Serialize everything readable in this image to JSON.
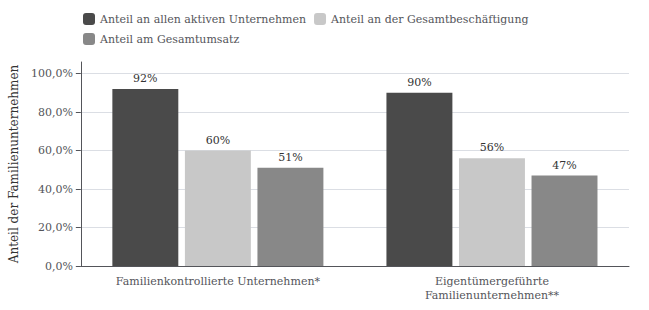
{
  "chart_data": {
    "type": "bar",
    "categories": [
      "Familienkontrollierte Unternehmen*",
      "Eigentümergeführte\nFamilienunternehmen**"
    ],
    "series": [
      {
        "name": "Anteil an allen aktiven Unternehmen",
        "color": "#4a4a4a",
        "values": [
          92,
          90
        ],
        "value_labels": [
          "92%",
          "90%"
        ]
      },
      {
        "name": "Anteil an der Gesamtbeschäftigung",
        "color": "#c8c8c8",
        "values": [
          60,
          56
        ],
        "value_labels": [
          "60%",
          "56%"
        ]
      },
      {
        "name": "Anteil am Gesamtumsatz",
        "color": "#888888",
        "values": [
          51,
          47
        ],
        "value_labels": [
          "51%",
          "47%"
        ]
      }
    ],
    "ylabel": "Anteil der Familienunternehmen",
    "ylim": [
      0,
      106
    ],
    "yticks": [
      {
        "value": 0,
        "label": "0,0%"
      },
      {
        "value": 20,
        "label": "20,0%"
      },
      {
        "value": 40,
        "label": "40,0%"
      },
      {
        "value": 60,
        "label": "60,0%"
      },
      {
        "value": 80,
        "label": "80,0%"
      },
      {
        "value": 100,
        "label": "100,0%"
      }
    ],
    "grid": true,
    "legend": "upper left",
    "data_labels": true
  }
}
